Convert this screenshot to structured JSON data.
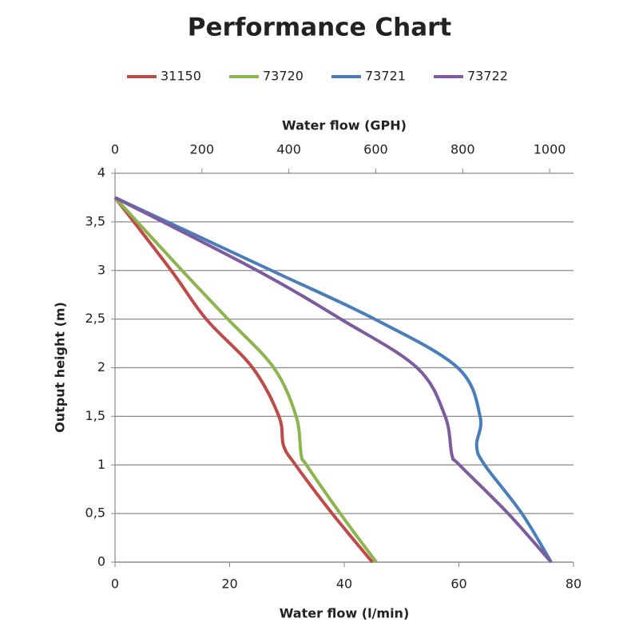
{
  "chart_data": {
    "type": "line",
    "title": "Performance Chart",
    "xlabel": "Water flow (l/min)",
    "x2label": "Water flow (GPH)",
    "ylabel": "Output height (m)",
    "xlim": [
      0,
      80
    ],
    "xticks": [
      0,
      20,
      40,
      60,
      80
    ],
    "x2lim": [
      0,
      1055
    ],
    "x2ticks": [
      0,
      200,
      400,
      600,
      800,
      1000
    ],
    "ylim": [
      0,
      4
    ],
    "yticks": [
      0,
      {
        "value": 0.5,
        "label": "0,5"
      },
      1,
      {
        "value": 1.5,
        "label": "1,5"
      },
      2,
      {
        "value": 2.5,
        "label": "2,5"
      },
      3,
      {
        "value": 3.5,
        "label": "3,5"
      },
      4
    ],
    "grid": true,
    "legend": "top",
    "series": [
      {
        "name": "31150",
        "color": "#be4b48",
        "x": [
          0,
          9.8,
          15.9,
          24,
          28.6,
          29.4,
          31.5,
          37.9,
          44.9
        ],
        "values": [
          3.75,
          3,
          2.5,
          2,
          1.5,
          1.2,
          1,
          0.5,
          0
        ]
      },
      {
        "name": "73720",
        "color": "#8cb44f",
        "x": [
          0,
          11.7,
          19.7,
          27.7,
          31.6,
          32.5,
          33.4,
          39.3,
          45.6
        ],
        "values": [
          3.75,
          3,
          2.5,
          2,
          1.5,
          1.1,
          1,
          0.5,
          0
        ]
      },
      {
        "name": "73721",
        "color": "#4a7ebb",
        "x": [
          0,
          27.3,
          45.3,
          59.8,
          63.7,
          63.1,
          64.5,
          71,
          76.1
        ],
        "values": [
          3.75,
          3,
          2.5,
          2,
          1.5,
          1.2,
          1,
          0.5,
          0
        ]
      },
      {
        "name": "73722",
        "color": "#7d5b9e",
        "x": [
          0,
          24.8,
          39.4,
          52.7,
          57.6,
          58.8,
          60.1,
          68.6,
          76.1
        ],
        "values": [
          3.75,
          3,
          2.5,
          2,
          1.5,
          1.1,
          1,
          0.5,
          0
        ]
      }
    ]
  }
}
